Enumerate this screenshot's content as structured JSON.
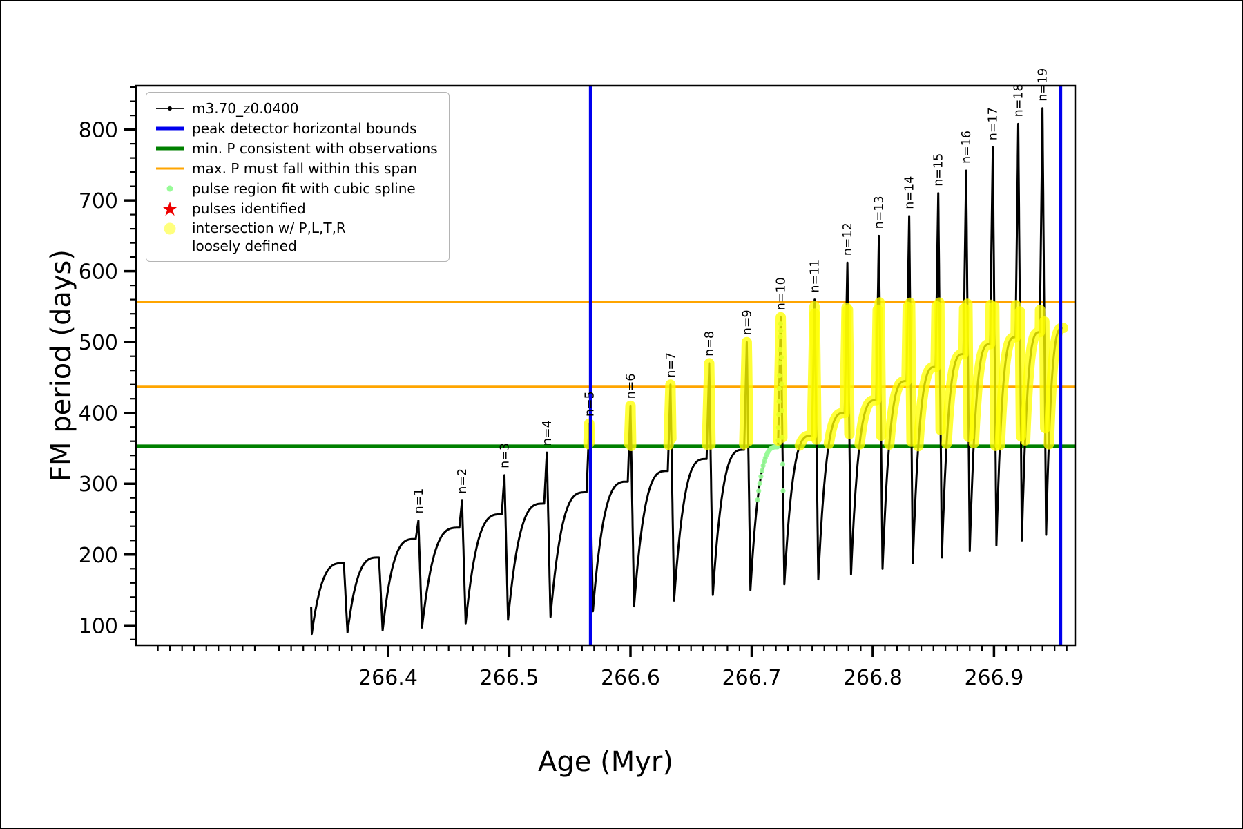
{
  "legend": {
    "items": [
      {
        "label": "m3.70_z0.0400",
        "type": "line-dot",
        "color": "#000000",
        "lw": 1.8
      },
      {
        "label": "peak detector horizontal bounds",
        "type": "line",
        "color": "#0000ee",
        "lw": 5
      },
      {
        "label": "min. P consistent with observations",
        "type": "line",
        "color": "#008000",
        "lw": 5
      },
      {
        "label": "max. P must fall within this span",
        "type": "line",
        "color": "#ffa500",
        "lw": 3
      },
      {
        "label": "pulse region fit with cubic spline",
        "type": "dot",
        "color": "#98fb98"
      },
      {
        "label": "pulses identified",
        "type": "star",
        "color": "#ee0000"
      },
      {
        "label": "intersection w/ P,L,T,R\nloosely defined",
        "type": "dot-large",
        "color": "#ffff66"
      }
    ]
  },
  "chart_data": {
    "type": "line",
    "title": "",
    "xlabel": "Age (Myr)",
    "ylabel": "FM period (days)",
    "series_label": "m3.70_z0.0400",
    "xlim": [
      266.192,
      266.967
    ],
    "ylim": [
      72,
      862
    ],
    "xticks": [
      266.4,
      266.5,
      266.6,
      266.7,
      266.8,
      266.9
    ],
    "yticks": [
      100,
      200,
      300,
      400,
      500,
      600,
      700,
      800
    ],
    "x_minor_step": 0.01,
    "y_minor_step": 20,
    "peak_bounds_x": [
      266.567,
      266.955
    ],
    "min_P_line": 353,
    "max_P_span": [
      437,
      557
    ],
    "yellow_band": [
      353,
      557
    ],
    "spline_pulse_n": 10,
    "style": {
      "curve_color": "#000000",
      "bounds_color": "#0000ee",
      "min_line_color": "#008000",
      "max_span_color": "#ffa500",
      "spline_color": "#98fb98",
      "intersection_color": "#ffff00"
    },
    "pulses": [
      {
        "n": null,
        "x_min": 266.337,
        "y_min": 88,
        "y_shoulder": 188,
        "x_peak": 266.3635,
        "y_peak": 188
      },
      {
        "n": null,
        "x_min": 266.3665,
        "y_min": 90,
        "y_shoulder": 196,
        "x_peak": 266.3925,
        "y_peak": 196
      },
      {
        "n": 1,
        "x_min": 266.3955,
        "y_min": 93,
        "y_shoulder": 222,
        "x_peak": 266.425,
        "y_peak": 248
      },
      {
        "n": 2,
        "x_min": 266.428,
        "y_min": 97,
        "y_shoulder": 238,
        "x_peak": 266.461,
        "y_peak": 276
      },
      {
        "n": 3,
        "x_min": 266.464,
        "y_min": 103,
        "y_shoulder": 257,
        "x_peak": 266.496,
        "y_peak": 312
      },
      {
        "n": 4,
        "x_min": 266.499,
        "y_min": 108,
        "y_shoulder": 272,
        "x_peak": 266.531,
        "y_peak": 344
      },
      {
        "n": 5,
        "x_min": 266.534,
        "y_min": 112,
        "y_shoulder": 288,
        "x_peak": 266.566,
        "y_peak": 385
      },
      {
        "n": 6,
        "x_min": 266.569,
        "y_min": 120,
        "y_shoulder": 303,
        "x_peak": 266.6,
        "y_peak": 410
      },
      {
        "n": 7,
        "x_min": 266.603,
        "y_min": 127,
        "y_shoulder": 318,
        "x_peak": 266.633,
        "y_peak": 440
      },
      {
        "n": 8,
        "x_min": 266.636,
        "y_min": 135,
        "y_shoulder": 335,
        "x_peak": 266.665,
        "y_peak": 470
      },
      {
        "n": 9,
        "x_min": 266.668,
        "y_min": 143,
        "y_shoulder": 348,
        "x_peak": 266.696,
        "y_peak": 500
      },
      {
        "n": 10,
        "x_min": 266.699,
        "y_min": 150,
        "y_shoulder": 352,
        "x_peak": 266.724,
        "y_peak": 535
      },
      {
        "n": 11,
        "x_min": 266.727,
        "y_min": 158,
        "y_shoulder": 368,
        "x_peak": 266.752,
        "y_peak": 560
      },
      {
        "n": 12,
        "x_min": 266.755,
        "y_min": 165,
        "y_shoulder": 400,
        "x_peak": 266.779,
        "y_peak": 612
      },
      {
        "n": 13,
        "x_min": 266.782,
        "y_min": 172,
        "y_shoulder": 418,
        "x_peak": 266.805,
        "y_peak": 650
      },
      {
        "n": 14,
        "x_min": 266.808,
        "y_min": 180,
        "y_shoulder": 445,
        "x_peak": 266.83,
        "y_peak": 678
      },
      {
        "n": 15,
        "x_min": 266.833,
        "y_min": 188,
        "y_shoulder": 465,
        "x_peak": 266.854,
        "y_peak": 710
      },
      {
        "n": 16,
        "x_min": 266.857,
        "y_min": 196,
        "y_shoulder": 483,
        "x_peak": 266.877,
        "y_peak": 742
      },
      {
        "n": 17,
        "x_min": 266.88,
        "y_min": 205,
        "y_shoulder": 497,
        "x_peak": 266.899,
        "y_peak": 775
      },
      {
        "n": 18,
        "x_min": 266.902,
        "y_min": 213,
        "y_shoulder": 507,
        "x_peak": 266.92,
        "y_peak": 808
      },
      {
        "n": 19,
        "x_min": 266.923,
        "y_min": 220,
        "y_shoulder": 514,
        "x_peak": 266.94,
        "y_peak": 830
      },
      {
        "n": null,
        "x_min": 266.943,
        "y_min": 228,
        "y_shoulder": 520,
        "x_peak": 266.957,
        "y_peak": 520
      }
    ]
  }
}
